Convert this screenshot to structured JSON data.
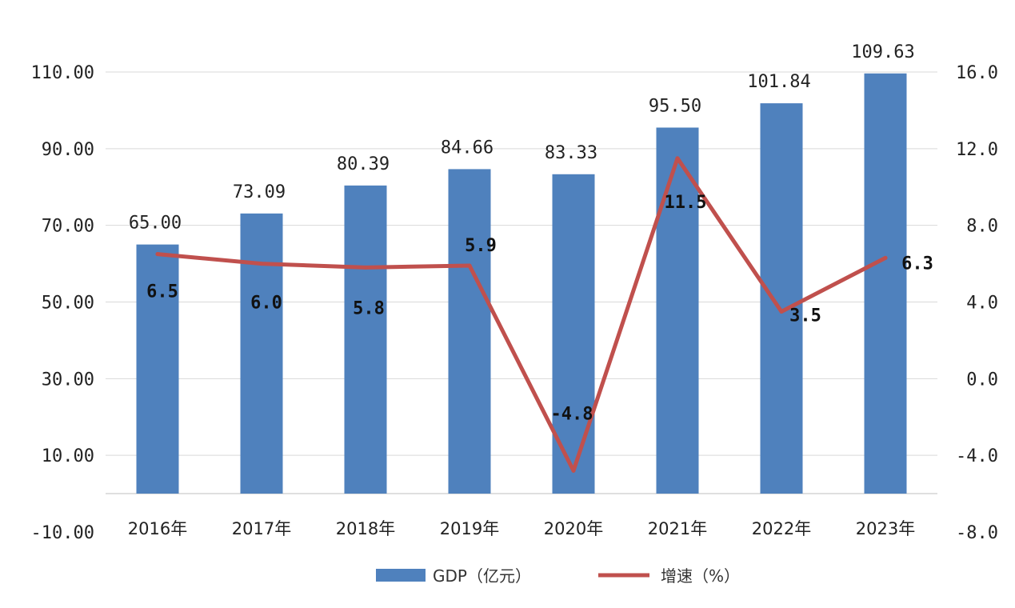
{
  "chart_data": {
    "type": "bar",
    "categories": [
      "2016年",
      "2017年",
      "2018年",
      "2019年",
      "2020年",
      "2021年",
      "2022年",
      "2023年"
    ],
    "series": [
      {
        "name": "GDP（亿元）",
        "type": "bar",
        "axis": "left",
        "color": "#4f81bd",
        "values": [
          65.0,
          73.09,
          80.39,
          84.66,
          83.33,
          95.5,
          101.84,
          109.63
        ],
        "labels": [
          "65.00",
          "73.09",
          "80.39",
          "84.66",
          "83.33",
          "95.50",
          "101.84",
          "109.63"
        ]
      },
      {
        "name": "增速（%）",
        "type": "line",
        "axis": "right",
        "color": "#c0504d",
        "values": [
          6.5,
          6.0,
          5.8,
          5.9,
          -4.8,
          11.5,
          3.5,
          6.3
        ],
        "labels": [
          "6.5",
          "6.0",
          "5.8",
          "5.9",
          "-4.8",
          "11.5",
          "3.5",
          "6.3"
        ]
      }
    ],
    "y_left": {
      "range": [
        -10,
        110
      ],
      "ticks": [
        -10,
        10,
        30,
        50,
        70,
        90,
        110
      ],
      "tick_labels": [
        "-10.00",
        "10.00",
        "30.00",
        "50.00",
        "70.00",
        "90.00",
        "110.00"
      ]
    },
    "y_right": {
      "range": [
        -8,
        16
      ],
      "ticks": [
        -8,
        -4,
        0,
        4,
        8,
        12,
        16
      ],
      "tick_labels": [
        "-8.0",
        "-4.0",
        "0.0",
        "4.0",
        "8.0",
        "12.0",
        "16.0"
      ]
    },
    "grid": true,
    "legend": "bottom"
  }
}
